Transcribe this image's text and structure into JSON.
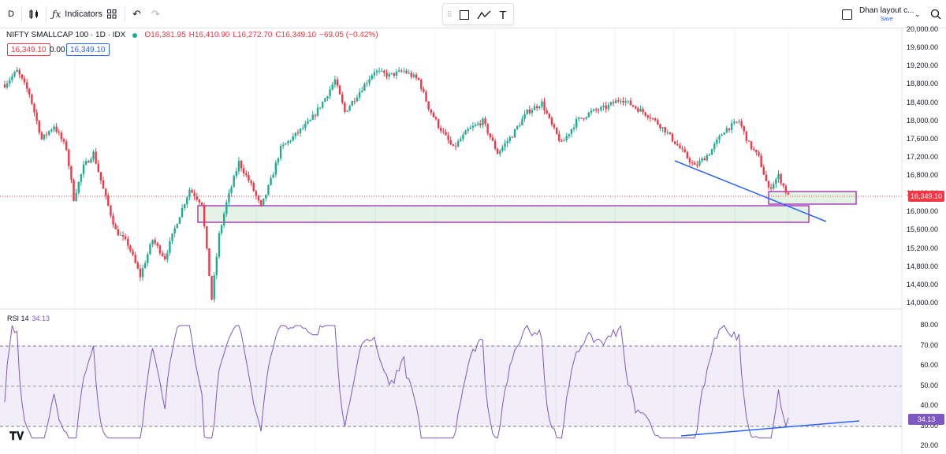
{
  "toolbar": {
    "interval": "D",
    "indicators_label": "Indicators",
    "layout_name": "Dhan layout c...",
    "save_label": "Save"
  },
  "legend": {
    "symbol": "NIFTY SMALLCAP 100 · 1D · IDX",
    "open": "O16,381.95",
    "high": "H16,410.90",
    "low": "L16,272.70",
    "close": "C16,349.10",
    "change": "−69.05 (−0.42%)",
    "bid": "16,349.10",
    "spread": "0.00",
    "ask": "16,349.10"
  },
  "rsi": {
    "label": "RSI 14",
    "value": "34.13"
  },
  "colors": {
    "up": "#22ab94",
    "down": "#f23645",
    "rsi": "#7e57c2",
    "trendline": "#2962ff",
    "zone": "#9c27b0"
  },
  "price_axis": [
    "20,000.00",
    "19,600.00",
    "19,200.00",
    "18,800.00",
    "18,400.00",
    "18,000.00",
    "17,600.00",
    "17,200.00",
    "16,800.00",
    "16,400.00",
    "16,000.00",
    "15,600.00",
    "15,200.00",
    "14,800.00",
    "14,400.00",
    "14,000.00"
  ],
  "current_price_tag": "16,349.10",
  "rsi_axis": [
    "80.00",
    "70.00",
    "60.00",
    "50.00",
    "40.00",
    "30.00",
    "20.00"
  ],
  "rsi_value_tag": "34.13",
  "chart_data": {
    "type": "candlestick",
    "title": "NIFTY SMALLCAP 100 · 1D · IDX",
    "price_range": [
      14000,
      20000
    ],
    "close_path_approx": [
      {
        "i": 0,
        "c": 18800
      },
      {
        "i": 5,
        "c": 19100
      },
      {
        "i": 10,
        "c": 18600
      },
      {
        "i": 15,
        "c": 17600
      },
      {
        "i": 20,
        "c": 17900
      },
      {
        "i": 25,
        "c": 17400
      },
      {
        "i": 28,
        "c": 16300
      },
      {
        "i": 32,
        "c": 17000
      },
      {
        "i": 36,
        "c": 17300
      },
      {
        "i": 40,
        "c": 16500
      },
      {
        "i": 45,
        "c": 15600
      },
      {
        "i": 50,
        "c": 15300
      },
      {
        "i": 55,
        "c": 14600
      },
      {
        "i": 60,
        "c": 15400
      },
      {
        "i": 65,
        "c": 15000
      },
      {
        "i": 70,
        "c": 15800
      },
      {
        "i": 75,
        "c": 16500
      },
      {
        "i": 80,
        "c": 16200
      },
      {
        "i": 84,
        "c": 14100
      },
      {
        "i": 87,
        "c": 15500
      },
      {
        "i": 90,
        "c": 16200
      },
      {
        "i": 95,
        "c": 17100
      },
      {
        "i": 100,
        "c": 16600
      },
      {
        "i": 104,
        "c": 16100
      },
      {
        "i": 108,
        "c": 16700
      },
      {
        "i": 112,
        "c": 17400
      },
      {
        "i": 118,
        "c": 17700
      },
      {
        "i": 124,
        "c": 18000
      },
      {
        "i": 130,
        "c": 18500
      },
      {
        "i": 134,
        "c": 18900
      },
      {
        "i": 138,
        "c": 18200
      },
      {
        "i": 142,
        "c": 18500
      },
      {
        "i": 146,
        "c": 18800
      },
      {
        "i": 150,
        "c": 19100
      },
      {
        "i": 156,
        "c": 19000
      },
      {
        "i": 162,
        "c": 19100
      },
      {
        "i": 168,
        "c": 18900
      },
      {
        "i": 172,
        "c": 18300
      },
      {
        "i": 176,
        "c": 17900
      },
      {
        "i": 182,
        "c": 17400
      },
      {
        "i": 188,
        "c": 17800
      },
      {
        "i": 194,
        "c": 18000
      },
      {
        "i": 200,
        "c": 17300
      },
      {
        "i": 206,
        "c": 17700
      },
      {
        "i": 212,
        "c": 18200
      },
      {
        "i": 218,
        "c": 18400
      },
      {
        "i": 222,
        "c": 17900
      },
      {
        "i": 226,
        "c": 17500
      },
      {
        "i": 232,
        "c": 18000
      },
      {
        "i": 238,
        "c": 18200
      },
      {
        "i": 244,
        "c": 18300
      },
      {
        "i": 250,
        "c": 18500
      },
      {
        "i": 256,
        "c": 18300
      },
      {
        "i": 262,
        "c": 18100
      },
      {
        "i": 268,
        "c": 17800
      },
      {
        "i": 274,
        "c": 17400
      },
      {
        "i": 280,
        "c": 17000
      },
      {
        "i": 286,
        "c": 17300
      },
      {
        "i": 292,
        "c": 17800
      },
      {
        "i": 298,
        "c": 18000
      },
      {
        "i": 302,
        "c": 17500
      },
      {
        "i": 306,
        "c": 17200
      },
      {
        "i": 310,
        "c": 16500
      },
      {
        "i": 314,
        "c": 16800
      },
      {
        "i": 318,
        "c": 16349
      }
    ],
    "rsi_range": [
      20,
      85
    ],
    "rsi_levels": [
      70,
      50,
      30
    ],
    "current_rsi": 34.13,
    "current_close": 16349.1
  }
}
